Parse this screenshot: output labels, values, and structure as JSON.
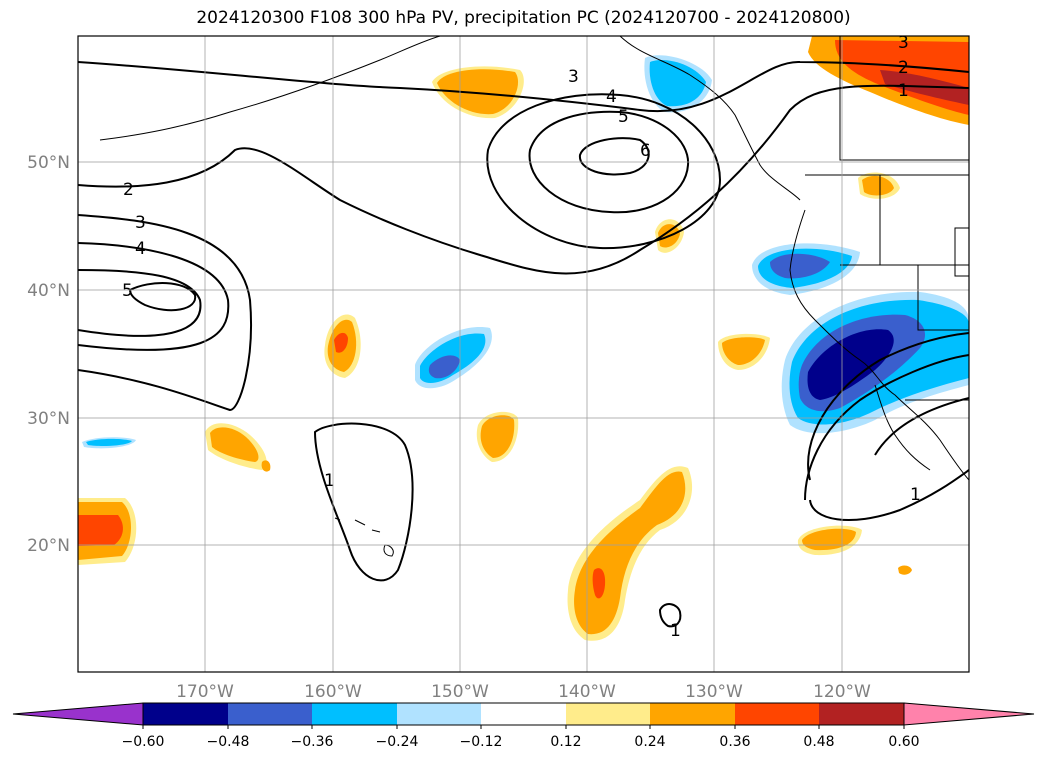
{
  "title": "2024120300 F108 300 hPa PV, precipitation PC (2024120700 - 2024120800)",
  "map": {
    "lat_labels": [
      "50°N",
      "40°N",
      "30°N",
      "20°N"
    ],
    "lon_labels": [
      "170°W",
      "160°W",
      "150°W",
      "140°W",
      "130°W",
      "120°W"
    ],
    "pv_contour_labels": [
      "1",
      "2",
      "3",
      "4",
      "5",
      "6"
    ]
  },
  "colorbar": {
    "ticks": [
      "−0.60",
      "−0.48",
      "−0.36",
      "−0.24",
      "−0.12",
      "0.12",
      "0.24",
      "0.36",
      "0.48",
      "0.60"
    ],
    "colors": [
      "#9932cc",
      "#00008b",
      "#3a5fcd",
      "#00bfff",
      "#b0e2ff",
      "#ffffff",
      "#ffec8b",
      "#ffa500",
      "#ff4500",
      "#b22222",
      "#ff82ab"
    ]
  }
}
